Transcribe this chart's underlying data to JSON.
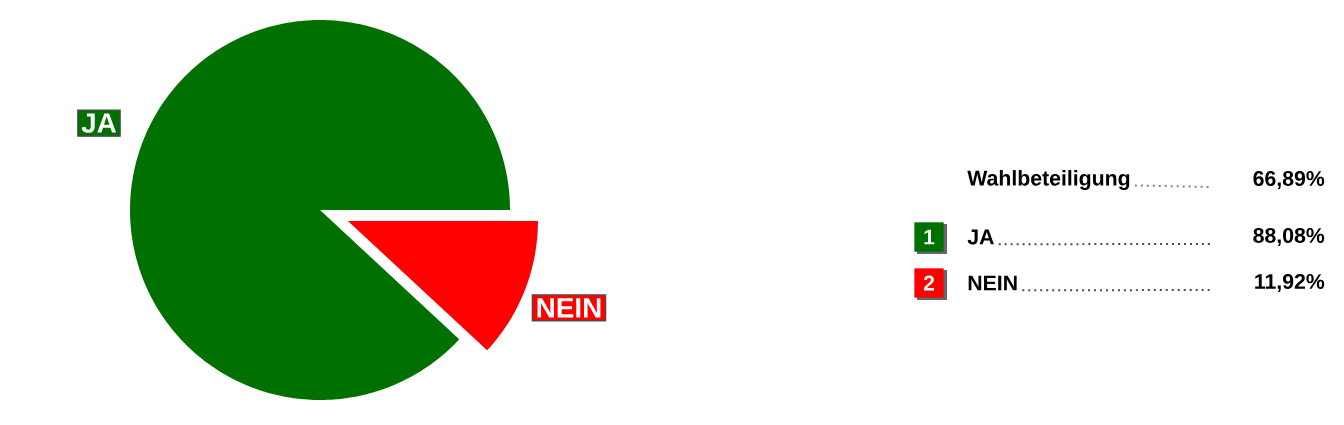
{
  "chart_data": {
    "type": "pie",
    "categories": [
      "JA",
      "NEIN"
    ],
    "values": [
      88.08,
      11.92
    ],
    "colors": [
      "#007000",
      "#ff0000"
    ],
    "value_labels": [
      "88,08%",
      "11,92%"
    ],
    "legend": "right",
    "annotations": [
      "Wahlbeteiligung",
      "66,89%",
      "1",
      "2"
    ]
  }
}
